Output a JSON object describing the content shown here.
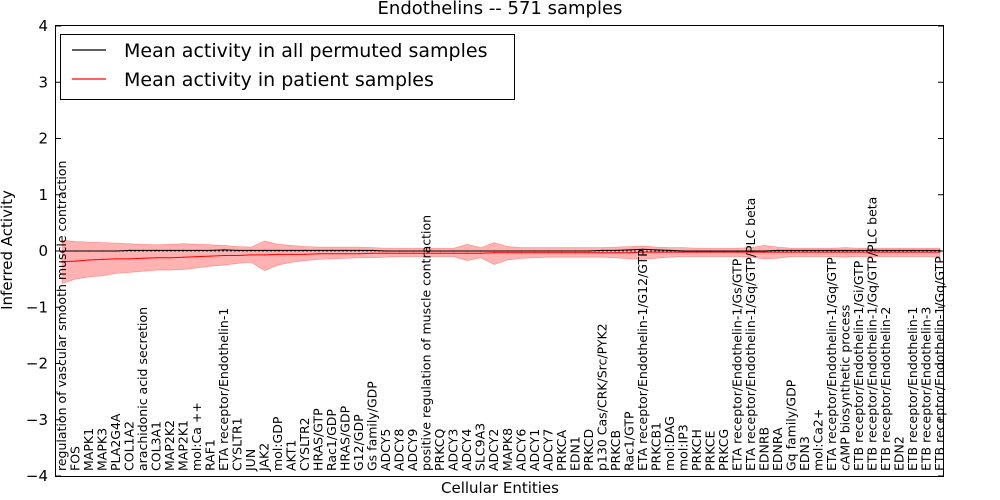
{
  "chart_data": {
    "type": "line",
    "title": "Endothelins -- 571 samples",
    "xlabel": "Cellular Entities",
    "ylabel": "Inferred Activity",
    "ylim": [
      -4,
      4
    ],
    "yticks": [
      -4,
      -3,
      -2,
      -1,
      0,
      1,
      2,
      3,
      4
    ],
    "grid": false,
    "legend_position": "top-left",
    "legend": [
      {
        "label": "Mean activity in all permuted samples",
        "color": "#000000"
      },
      {
        "label": "Mean activity in patient samples",
        "color": "#ff0000"
      }
    ],
    "categories": [
      "regulation of vascular smooth muscle contraction",
      "FOS",
      "MAPK1",
      "MAPK3",
      "PLA2G4A",
      "COL1A2",
      "arachidonic acid secretion",
      "COL3A1",
      "MAP2K2",
      "MAP2K1",
      "mol:Ca ++",
      "RAF1",
      "ETA receptor/Endothelin-1",
      "CYSLTR1",
      "JUN",
      "JAK2",
      "mol:GDP",
      "AKT1",
      "CYSLTR2",
      "HRAS/GTP",
      "Rac1/GDP",
      "HRAS/GDP",
      "G12/GDP",
      "Gs family/GDP",
      "ADCY5",
      "ADCY8",
      "ADCY9",
      "positive regulation of muscle contraction",
      "PRKCQ",
      "ADCY3",
      "ADCY4",
      "SLC9A3",
      "ADCY2",
      "MAPK8",
      "ADCY6",
      "ADCY1",
      "ADCY7",
      "PRKCA",
      "EDN1",
      "PRKCD",
      "p130 Cas/CRK/Src/PYK2",
      "PRKCB",
      "Rac1/GTP",
      "ETA receptor/Endothelin-1/G12/GTP",
      "PRKCB1",
      "mol:DAG",
      "mol:IP3",
      "PRKCH",
      "PRKCE",
      "PRKCG",
      "ETA receptor/Endothelin-1/Gs/GTP",
      "ETA receptor/Endothelin-1/Gq/GTP/PLC beta",
      "EDNRB",
      "EDNRA",
      "Gq family/GDP",
      "EDN3",
      "mol:Ca2+",
      "ETA receptor/Endothelin-1/Gq/GTP",
      "cAMP biosynthetic process",
      "ETB receptor/Endothelin-1/Gi/GTP",
      "ETB receptor/Endothelin-1/Gq/GTP/PLC beta",
      "ETB receptor/Endothelin-2",
      "EDN2",
      "ETB receptor/Endothelin-1",
      "ETB receptor/Endothelin-3",
      "ETB receptor/Endothelin-1/Gq/GTP"
    ],
    "series": [
      {
        "name": "Mean activity in all permuted samples",
        "color": "#000000",
        "values": [
          0.0,
          0.0,
          0.0,
          0.0,
          0.0,
          0.01,
          0.01,
          0.01,
          0.01,
          0.01,
          0.01,
          0.01,
          0.02,
          0.01,
          0.01,
          0.01,
          0.01,
          0.01,
          0.01,
          0.01,
          0.01,
          0.01,
          0.01,
          0.01,
          0.0,
          0.0,
          0.0,
          0.0,
          0.0,
          0.0,
          0.0,
          0.0,
          0.0,
          0.0,
          0.0,
          0.0,
          0.0,
          0.0,
          0.0,
          0.0,
          0.01,
          0.01,
          0.02,
          0.03,
          0.02,
          0.01,
          0.0,
          0.0,
          0.0,
          0.0,
          0.0,
          0.0,
          0.0,
          0.01,
          0.01,
          0.01,
          0.01,
          0.01,
          0.01,
          0.01,
          0.01,
          0.01,
          0.01,
          0.01,
          0.01,
          0.01
        ]
      },
      {
        "name": "Mean activity in patient samples",
        "color": "#ff0000",
        "values": [
          -0.19,
          -0.18,
          -0.16,
          -0.15,
          -0.14,
          -0.14,
          -0.13,
          -0.12,
          -0.12,
          -0.11,
          -0.1,
          -0.09,
          -0.08,
          -0.08,
          -0.07,
          -0.07,
          -0.06,
          -0.06,
          -0.06,
          -0.05,
          -0.05,
          -0.05,
          -0.05,
          -0.04,
          -0.04,
          -0.04,
          -0.04,
          -0.04,
          -0.04,
          -0.04,
          -0.04,
          -0.04,
          -0.03,
          -0.03,
          -0.03,
          -0.03,
          -0.03,
          -0.03,
          -0.03,
          -0.03,
          -0.03,
          -0.03,
          -0.03,
          -0.02,
          -0.02,
          -0.02,
          -0.02,
          -0.02,
          -0.02,
          -0.02,
          -0.02,
          -0.02,
          -0.02,
          -0.02,
          -0.02,
          -0.02,
          -0.02,
          -0.02,
          -0.02,
          -0.02,
          -0.02,
          -0.02,
          -0.02,
          -0.02,
          -0.02,
          -0.02
        ],
        "band_upper": [
          0.19,
          0.17,
          0.16,
          0.15,
          0.14,
          0.13,
          0.12,
          0.11,
          0.12,
          0.13,
          0.12,
          0.11,
          0.1,
          0.08,
          0.07,
          0.18,
          0.12,
          0.1,
          0.08,
          0.07,
          0.07,
          0.07,
          0.07,
          0.06,
          0.05,
          0.05,
          0.05,
          0.05,
          0.05,
          0.05,
          0.12,
          0.06,
          0.15,
          0.08,
          0.06,
          0.06,
          0.06,
          0.06,
          0.06,
          0.06,
          0.06,
          0.07,
          0.08,
          0.09,
          0.07,
          0.06,
          0.06,
          0.05,
          0.05,
          0.05,
          0.05,
          0.06,
          0.1,
          0.07,
          0.05,
          0.05,
          0.05,
          0.05,
          0.06,
          0.05,
          0.05,
          0.05,
          0.05,
          0.05,
          0.05,
          0.05
        ],
        "band_lower": [
          -0.58,
          -0.5,
          -0.46,
          -0.44,
          -0.4,
          -0.38,
          -0.36,
          -0.34,
          -0.34,
          -0.33,
          -0.3,
          -0.27,
          -0.25,
          -0.22,
          -0.2,
          -0.35,
          -0.25,
          -0.2,
          -0.17,
          -0.15,
          -0.14,
          -0.13,
          -0.12,
          -0.12,
          -0.11,
          -0.1,
          -0.1,
          -0.1,
          -0.1,
          -0.1,
          -0.17,
          -0.12,
          -0.24,
          -0.16,
          -0.13,
          -0.12,
          -0.11,
          -0.11,
          -0.11,
          -0.11,
          -0.11,
          -0.12,
          -0.14,
          -0.15,
          -0.13,
          -0.11,
          -0.1,
          -0.1,
          -0.1,
          -0.1,
          -0.1,
          -0.11,
          -0.14,
          -0.13,
          -0.1,
          -0.1,
          -0.1,
          -0.1,
          -0.11,
          -0.1,
          -0.1,
          -0.1,
          -0.1,
          -0.1,
          -0.1,
          -0.1
        ]
      }
    ]
  }
}
